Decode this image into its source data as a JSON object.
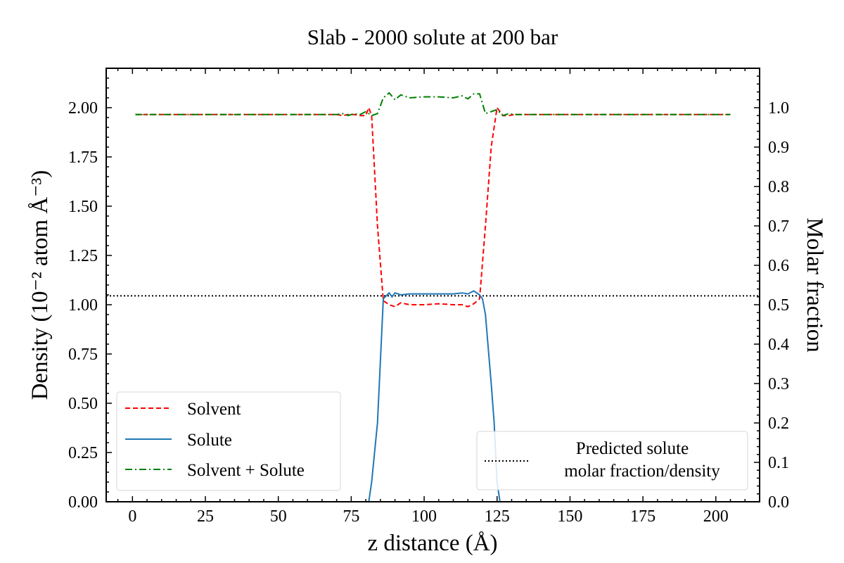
{
  "chart_data": {
    "type": "line",
    "title": "Slab - 2000 solute at 200 bar",
    "xlabel": "z distance (Å)",
    "ylabel": "Density (10⁻² atom Å⁻³)",
    "y2label": "Molar fraction",
    "xlim": [
      -9,
      215
    ],
    "ylim": [
      0,
      2.2
    ],
    "y2lim": [
      0,
      1.1
    ],
    "xticks": [
      0,
      25,
      50,
      75,
      100,
      125,
      150,
      175,
      200
    ],
    "xtick_labels": [
      "0",
      "25",
      "50",
      "75",
      "100",
      "125",
      "150",
      "175",
      "200"
    ],
    "yticks": [
      0,
      0.25,
      0.5,
      0.75,
      1.0,
      1.25,
      1.5,
      1.75,
      2.0
    ],
    "ytick_labels": [
      "0.00",
      "0.25",
      "0.50",
      "0.75",
      "1.00",
      "1.25",
      "1.50",
      "1.75",
      "2.00"
    ],
    "y2ticks": [
      0,
      0.1,
      0.2,
      0.3,
      0.4,
      0.5,
      0.6,
      0.7,
      0.8,
      0.9,
      1.0
    ],
    "y2tick_labels": [
      "0.0",
      "0.1",
      "0.2",
      "0.3",
      "0.4",
      "0.5",
      "0.6",
      "0.7",
      "0.8",
      "0.9",
      "1.0"
    ],
    "series": [
      {
        "name": "Solvent",
        "color": "#ff0000",
        "style": "dashed",
        "x": [
          1,
          10,
          20,
          30,
          40,
          50,
          60,
          70,
          72,
          74,
          76,
          78,
          80,
          81,
          82,
          84,
          86,
          88,
          90,
          92,
          95,
          100,
          105,
          110,
          113,
          115,
          117,
          119,
          121,
          123,
          125,
          127,
          129,
          131,
          135,
          140,
          150,
          160,
          170,
          180,
          190,
          200,
          205
        ],
        "values": [
          1.965,
          1.965,
          1.965,
          1.965,
          1.965,
          1.965,
          1.965,
          1.965,
          1.96,
          1.965,
          1.965,
          1.96,
          1.96,
          2.0,
          1.96,
          1.4,
          1.02,
          1.0,
          0.99,
          1.01,
          1.0,
          1.0,
          1.005,
          1.0,
          1.0,
          0.99,
          1.005,
          1.03,
          1.4,
          1.8,
          2.0,
          1.96,
          1.96,
          1.965,
          1.965,
          1.965,
          1.965,
          1.965,
          1.965,
          1.965,
          1.965,
          1.965,
          1.965
        ]
      },
      {
        "name": "Solute",
        "color": "#1f77b4",
        "style": "solid",
        "x": [
          81,
          82,
          84,
          86,
          88,
          89,
          90,
          92,
          95,
          100,
          105,
          110,
          113,
          115,
          117,
          119,
          120,
          121,
          123,
          124,
          125,
          126
        ],
        "values": [
          0.0,
          0.1,
          0.4,
          1.03,
          1.06,
          1.04,
          1.06,
          1.05,
          1.055,
          1.055,
          1.055,
          1.055,
          1.06,
          1.055,
          1.07,
          1.05,
          1.03,
          0.95,
          0.6,
          0.4,
          0.1,
          0.0
        ]
      },
      {
        "name": "Solvent + Solute",
        "color": "#008000",
        "style": "dashdot",
        "x": [
          1,
          10,
          20,
          30,
          40,
          50,
          60,
          70,
          72,
          74,
          76,
          78,
          80,
          82,
          84,
          86,
          88,
          90,
          92,
          95,
          100,
          105,
          110,
          113,
          115,
          117,
          119,
          121,
          123,
          125,
          127,
          129,
          131,
          135,
          140,
          150,
          160,
          170,
          180,
          190,
          200,
          205
        ],
        "values": [
          1.965,
          1.965,
          1.965,
          1.965,
          1.965,
          1.965,
          1.965,
          1.965,
          1.97,
          1.96,
          1.97,
          1.965,
          1.98,
          1.96,
          1.97,
          2.05,
          2.075,
          2.04,
          2.065,
          2.05,
          2.055,
          2.055,
          2.05,
          2.06,
          2.045,
          2.07,
          2.07,
          1.97,
          1.98,
          1.99,
          1.96,
          1.97,
          1.965,
          1.965,
          1.965,
          1.965,
          1.965,
          1.965,
          1.965,
          1.965,
          1.965,
          1.965
        ]
      }
    ],
    "reference_line": {
      "name": "Predicted solute molar fraction/density",
      "label_lines": [
        "Predicted solute",
        "molar fraction/density"
      ],
      "value": 1.045,
      "color": "#000000",
      "style": "dotted"
    },
    "legend_main": {
      "position": "lower-left",
      "entries": [
        "Solvent",
        "Solute",
        "Solvent + Solute"
      ]
    },
    "legend_ref": {
      "position": "lower-right"
    }
  }
}
